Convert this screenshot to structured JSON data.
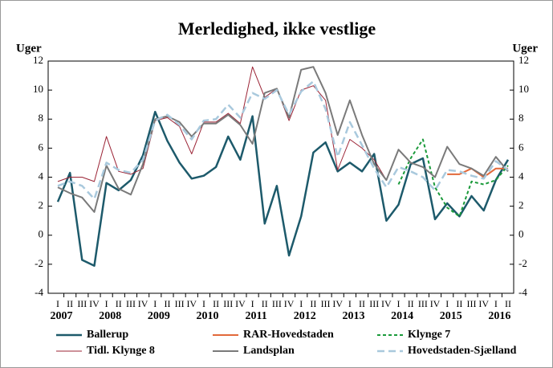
{
  "chart_data": {
    "type": "line",
    "title": "Merledighed, ikke vestlige",
    "y_label": "Uger",
    "y2_label": "Uger",
    "categories": [
      "I",
      "II",
      "III",
      "IV",
      "I",
      "II",
      "III",
      "IV",
      "I",
      "II",
      "III",
      "IV",
      "I",
      "II",
      "III",
      "IV",
      "I",
      "II",
      "III",
      "IV",
      "I",
      "II",
      "III",
      "IV",
      "I",
      "II",
      "III",
      "IV",
      "I",
      "II",
      "III",
      "IV",
      "I",
      "II",
      "III",
      "IV",
      "I",
      "II"
    ],
    "year_labels": [
      "2007",
      "2008",
      "2009",
      "2010",
      "2011",
      "2012",
      "2013",
      "2014",
      "2015",
      "2016"
    ],
    "ylim": [
      -4,
      12
    ],
    "yticks": [
      -4,
      -2,
      0,
      2,
      4,
      6,
      8,
      10,
      12
    ],
    "y2lim": [
      -4,
      12
    ],
    "y2ticks": [
      -4,
      -2,
      0,
      2,
      4,
      6,
      8,
      10,
      12
    ],
    "grid": false,
    "series": [
      {
        "name": "Ballerup",
        "color": "#1d5a6b",
        "width": 2.5,
        "dashed": false,
        "values": [
          2.3,
          4.3,
          -1.7,
          -2.1,
          3.6,
          3.1,
          3.8,
          5.5,
          8.5,
          6.5,
          5.0,
          3.9,
          4.1,
          4.7,
          6.8,
          5.2,
          8.2,
          0.8,
          3.4,
          -1.4,
          1.3,
          5.7,
          6.4,
          4.4,
          5.0,
          4.4,
          5.6,
          1.0,
          2.1,
          4.9,
          5.3,
          1.1,
          2.2,
          1.3,
          2.7,
          1.7,
          3.8,
          5.2
        ]
      },
      {
        "name": "RAR-Hovedstaden",
        "color": "#e2693a",
        "width": 2,
        "dashed": false,
        "values": [
          null,
          null,
          null,
          null,
          null,
          null,
          null,
          null,
          null,
          null,
          null,
          null,
          null,
          null,
          null,
          null,
          null,
          null,
          null,
          null,
          null,
          null,
          null,
          null,
          null,
          null,
          null,
          null,
          null,
          null,
          null,
          null,
          4.2,
          4.2,
          4.6,
          4.0,
          4.6,
          4.6
        ]
      },
      {
        "name": "Klynge 7",
        "color": "#1a9a3a",
        "width": 2,
        "dashed": true,
        "values": [
          null,
          null,
          null,
          null,
          null,
          null,
          null,
          null,
          null,
          null,
          null,
          null,
          null,
          null,
          null,
          null,
          null,
          null,
          null,
          null,
          null,
          null,
          null,
          null,
          null,
          null,
          null,
          null,
          3.5,
          5.3,
          6.6,
          3.3,
          1.9,
          1.3,
          3.7,
          3.5,
          3.8,
          4.8
        ]
      },
      {
        "name": "Tidl. Klynge 8",
        "color": "#9b2335",
        "width": 1,
        "dashed": false,
        "values": [
          3.7,
          4.0,
          4.0,
          3.7,
          6.8,
          4.4,
          4.2,
          4.6,
          7.9,
          8.1,
          7.5,
          5.6,
          7.8,
          7.8,
          8.4,
          7.7,
          11.6,
          9.5,
          10.1,
          7.9,
          10.0,
          10.3,
          9.3,
          4.5,
          6.6,
          6.0,
          5.2,
          3.8,
          null,
          null,
          null,
          null,
          null,
          null,
          null,
          null,
          null,
          null
        ]
      },
      {
        "name": "Landsplan",
        "color": "#7a7a7a",
        "width": 2,
        "dashed": false,
        "values": [
          3.3,
          2.9,
          2.6,
          1.6,
          4.8,
          3.2,
          2.8,
          4.9,
          8.0,
          8.2,
          7.8,
          6.8,
          7.7,
          7.7,
          8.3,
          7.6,
          6.3,
          9.8,
          10.1,
          8.1,
          11.4,
          11.6,
          9.8,
          6.9,
          9.3,
          6.9,
          4.9,
          3.8,
          5.9,
          5.0,
          4.7,
          4.0,
          6.1,
          4.9,
          4.6,
          4.1,
          5.4,
          4.4
        ]
      },
      {
        "name": "Hovedstaden-Sjælland",
        "color": "#a9c9dd",
        "width": 2.5,
        "dashed": true,
        "values": [
          3.4,
          3.7,
          3.4,
          2.5,
          5.0,
          4.5,
          4.3,
          5.2,
          7.9,
          8.3,
          7.6,
          6.6,
          7.9,
          8.0,
          9.0,
          8.1,
          9.8,
          9.4,
          10.0,
          8.3,
          9.9,
          10.6,
          8.7,
          5.4,
          7.8,
          6.2,
          4.6,
          3.3,
          4.7,
          4.4,
          4.0,
          3.1,
          4.5,
          4.4,
          4.1,
          3.9,
          5.1,
          4.5
        ]
      }
    ]
  }
}
